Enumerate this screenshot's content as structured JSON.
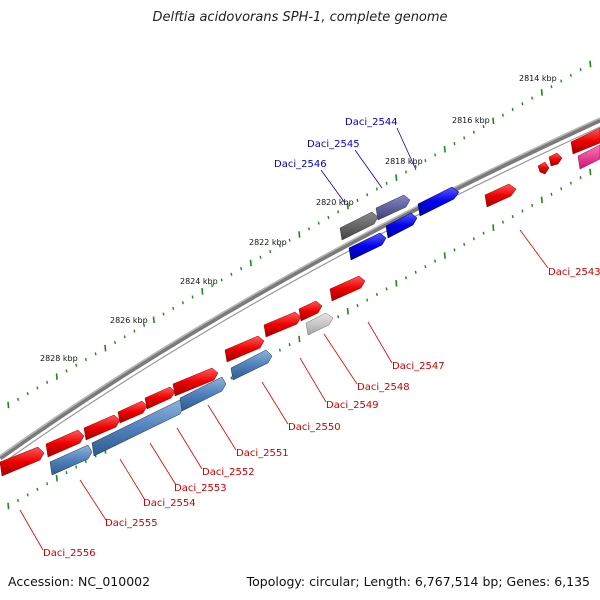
{
  "title": "Delftia acidovorans SPH-1, complete genome",
  "footer": {
    "accession": "Accession: NC_010002",
    "summary": "Topology: circular; Length: 6,767,514 bp; Genes: 6,135"
  },
  "ticks": [
    "2814 kbp",
    "2816 kbp",
    "2818 kbp",
    "2820 kbp",
    "2822 kbp",
    "2824 kbp",
    "2826 kbp",
    "2828 kbp"
  ],
  "genes_top": [
    "Daci_2544",
    "Daci_2545",
    "Daci_2546"
  ],
  "genes_bottom": [
    "Daci_2543",
    "Daci_2547",
    "Daci_2548",
    "Daci_2549",
    "Daci_2550",
    "Daci_2551",
    "Daci_2552",
    "Daci_2553",
    "Daci_2554",
    "Daci_2555",
    "Daci_2556"
  ],
  "colors": {
    "backbone": "#808080",
    "forward_gene": "#ff0000",
    "reverse_gene": "#4f81bd",
    "highlight_blue": "#0000ff",
    "dark_gene": "#555555",
    "purple_gene": "#55559a",
    "light_gene": "#c0c0c0",
    "pink_gene": "#ff3399",
    "tick": "#1a8c1a"
  }
}
